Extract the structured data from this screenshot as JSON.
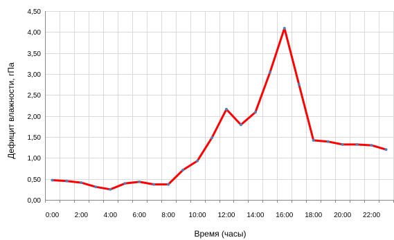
{
  "chart_data": {
    "type": "line",
    "title": "",
    "xlabel": "Время (часы)",
    "ylabel": "Дефицит влажности, гПа",
    "ylim": [
      0,
      4.5
    ],
    "y_ticks": [
      "0,00",
      "0,50",
      "1,00",
      "1,50",
      "2,00",
      "2,50",
      "3,00",
      "3,50",
      "4,00",
      "4,50"
    ],
    "x_ticks": [
      "0:00",
      "2:00",
      "4:00",
      "6:00",
      "8:00",
      "10:00",
      "12:00",
      "14:00",
      "16:00",
      "18:00",
      "20:00",
      "22:00"
    ],
    "grid": true,
    "legend": "none",
    "series": [
      {
        "color": "#ff0000",
        "marker_color": "#4f81bd",
        "x": [
          0,
          1,
          2,
          3,
          4,
          5,
          6,
          7,
          8,
          9,
          10,
          11,
          12,
          13,
          14,
          15,
          16,
          17,
          18,
          19,
          20,
          21,
          22,
          23
        ],
        "values": [
          0.47,
          0.45,
          0.41,
          0.31,
          0.25,
          0.39,
          0.43,
          0.37,
          0.37,
          0.71,
          0.93,
          1.48,
          2.16,
          1.79,
          2.09,
          3.04,
          4.09,
          2.75,
          1.42,
          1.39,
          1.32,
          1.32,
          1.3,
          1.2
        ]
      }
    ]
  }
}
